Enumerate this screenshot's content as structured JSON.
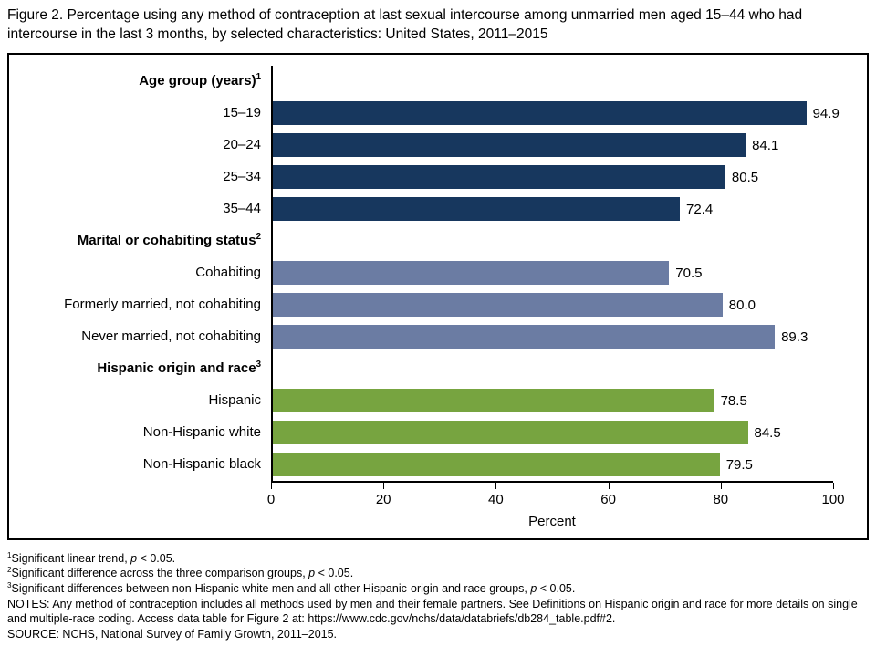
{
  "title": "Figure 2. Percentage using any method of contraception at last sexual intercourse among unmarried men aged 15–44 who had intercourse in the last 3 months, by selected characteristics: United States, 2011–2015",
  "chart_data": {
    "type": "bar",
    "orientation": "horizontal",
    "xlabel": "Percent",
    "xlim": [
      0,
      100
    ],
    "xticks": [
      0,
      20,
      40,
      60,
      80,
      100
    ],
    "grid": false,
    "groups": [
      {
        "header": "Age group (years)",
        "sup": "1",
        "color": "#17375e",
        "bars": [
          {
            "label": "15–19",
            "value": 94.9,
            "display": "94.9"
          },
          {
            "label": "20–24",
            "value": 84.1,
            "display": "84.1"
          },
          {
            "label": "25–34",
            "value": 80.5,
            "display": "80.5"
          },
          {
            "label": "35–44",
            "value": 72.4,
            "display": "72.4"
          }
        ]
      },
      {
        "header": "Marital or cohabiting status",
        "sup": "2",
        "color": "#6b7ca3",
        "bars": [
          {
            "label": "Cohabiting",
            "value": 70.5,
            "display": "70.5"
          },
          {
            "label": "Formerly married, not cohabiting",
            "value": 80.0,
            "display": "80.0"
          },
          {
            "label": "Never married, not cohabiting",
            "value": 89.3,
            "display": "89.3"
          }
        ]
      },
      {
        "header": "Hispanic origin and race",
        "sup": "3",
        "color": "#77a440",
        "bars": [
          {
            "label": "Hispanic",
            "value": 78.5,
            "display": "78.5"
          },
          {
            "label": "Non-Hispanic white",
            "value": 84.5,
            "display": "84.5"
          },
          {
            "label": "Non-Hispanic black",
            "value": 79.5,
            "display": "79.5"
          }
        ]
      }
    ]
  },
  "footnotes": [
    {
      "sup": "1",
      "text": "Significant linear trend, p < 0.05."
    },
    {
      "sup": "2",
      "text": "Significant difference across the three comparison groups, p < 0.05."
    },
    {
      "sup": "3",
      "text": "Significant differences between non-Hispanic white men and all other Hispanic-origin and race groups, p < 0.05."
    }
  ],
  "notes": "NOTES: Any method of contraception includes all methods used by men and their female partners. See Definitions on Hispanic origin and race for more details on single and multiple-race coding. Access data table for Figure 2 at: https://www.cdc.gov/nchs/data/databriefs/db284_table.pdf#2.",
  "source": "SOURCE: NCHS, National Survey of Family Growth, 2011–2015."
}
